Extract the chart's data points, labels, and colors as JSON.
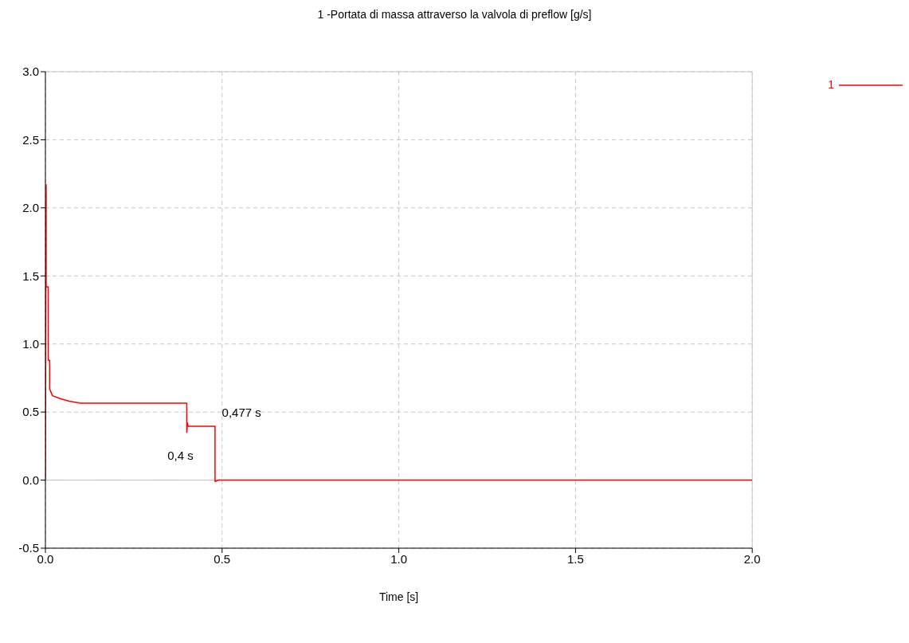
{
  "chart_data": {
    "type": "line",
    "title": "1 -Portata di massa attraverso la valvola di preflow  [g/s]",
    "xlabel": "Time [s]",
    "xlim": [
      0,
      2
    ],
    "xticks": [
      {
        "value": 0,
        "label": "0.0"
      },
      {
        "value": 0.5,
        "label": "0.5"
      },
      {
        "value": 1,
        "label": "1.0"
      },
      {
        "value": 1.5,
        "label": "1.5"
      },
      {
        "value": 2,
        "label": "2.0"
      }
    ],
    "ylim": [
      -0.5,
      3
    ],
    "yticks": [
      {
        "value": -0.5,
        "label": "-0.5"
      },
      {
        "value": 0,
        "label": "0.0"
      },
      {
        "value": 0.5,
        "label": "0.5"
      },
      {
        "value": 1,
        "label": "1.0"
      },
      {
        "value": 1.5,
        "label": "1.5"
      },
      {
        "value": 2,
        "label": "2.0"
      },
      {
        "value": 2.5,
        "label": "2.5"
      },
      {
        "value": 3,
        "label": "3.0"
      }
    ],
    "grid": true,
    "legend": "top right",
    "line_style": "solid",
    "marker": "none",
    "ref_lines": [
      {
        "axis": "y",
        "value": 0,
        "color": "#c0c0c0",
        "line_style": "solid"
      }
    ],
    "annotations": [
      {
        "text": "0,4 s",
        "x": 0.4,
        "y": 0.395
      },
      {
        "text": "0,477 s",
        "x": 0.477,
        "y": 0.395
      }
    ],
    "series": [
      {
        "name": "1",
        "color": "#ff0000",
        "x": [
          0,
          0.002,
          0.002,
          0.008,
          0.008,
          0.012,
          0.012,
          0.02,
          0.04,
          0.067,
          0.1,
          0.4,
          0.4,
          0.402,
          0.404,
          0.48,
          0.48,
          0.49,
          0.5,
          2.0
        ],
        "values": [
          0,
          2.17,
          1.42,
          1.42,
          0.88,
          0.88,
          0.67,
          0.62,
          0.6,
          0.58,
          0.565,
          0.565,
          0.35,
          0.42,
          0.395,
          0.395,
          -0.01,
          0,
          0,
          0
        ]
      }
    ]
  }
}
